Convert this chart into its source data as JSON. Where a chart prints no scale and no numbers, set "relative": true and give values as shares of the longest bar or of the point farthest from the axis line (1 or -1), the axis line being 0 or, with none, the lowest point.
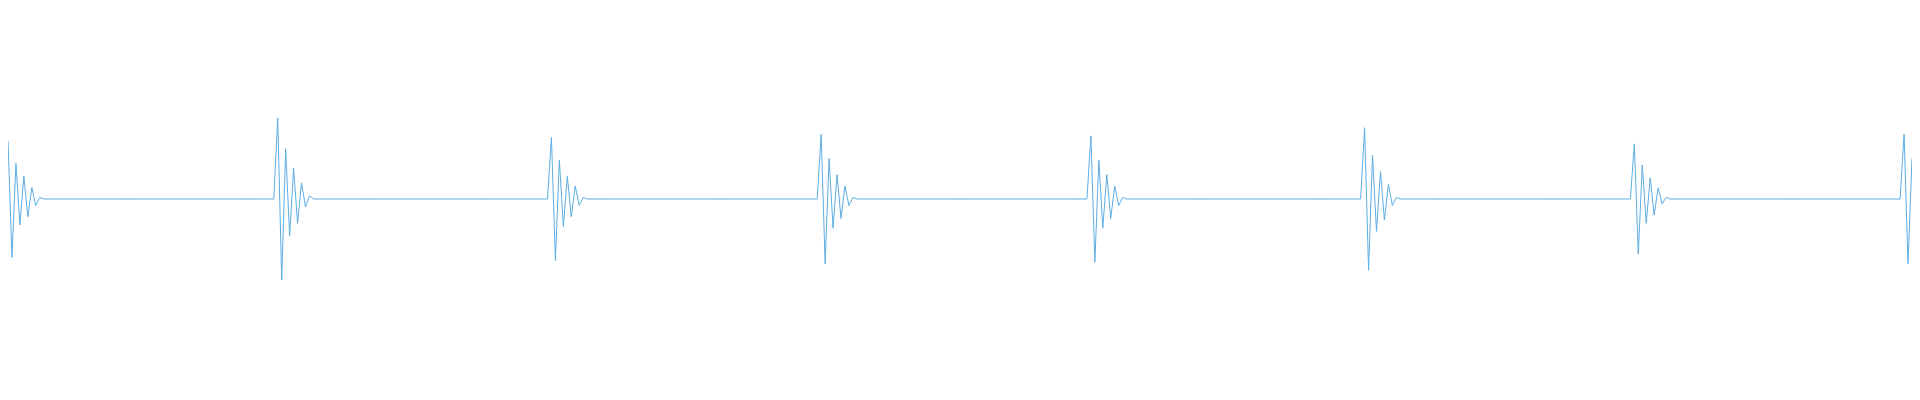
{
  "chart_data": {
    "type": "line",
    "relative": true,
    "color": "#5dade2",
    "categories": [
      null,
      null,
      null,
      null,
      null,
      null,
      null,
      null,
      null,
      null,
      null,
      null,
      null,
      null,
      null,
      null,
      null,
      null,
      null,
      null,
      null,
      null,
      null,
      null,
      null,
      null,
      null,
      null,
      null,
      null,
      null,
      null,
      null,
      null,
      null,
      null,
      null,
      null,
      null,
      null,
      null,
      null,
      null,
      null,
      null,
      null,
      null,
      null,
      null,
      null,
      null,
      null,
      null,
      null,
      null,
      null,
      null,
      null,
      null,
      null,
      null,
      null,
      null,
      null,
      null,
      null,
      null,
      null,
      null,
      null,
      null,
      null,
      null,
      null,
      null,
      null,
      null,
      null,
      null,
      null,
      null,
      null,
      null,
      null,
      null,
      null,
      null,
      null,
      null,
      null,
      null,
      null,
      null,
      null,
      null,
      null,
      null,
      null,
      null,
      null,
      null,
      null,
      null,
      null,
      null,
      null,
      null,
      null,
      null,
      null,
      null,
      null,
      null,
      null,
      null,
      null,
      null,
      null,
      null,
      null,
      null,
      null,
      null,
      null,
      null,
      null,
      null,
      null,
      null,
      null,
      null,
      null,
      null,
      null,
      null,
      null,
      null,
      null,
      null,
      null,
      null,
      null,
      null,
      null,
      null,
      null,
      null,
      null,
      null,
      null,
      null,
      null,
      null,
      null,
      null,
      null,
      null,
      null,
      null,
      null,
      null,
      null,
      null,
      null,
      null,
      null,
      null,
      null,
      null,
      null,
      null,
      null,
      null,
      null,
      null,
      null,
      null,
      null,
      null,
      null,
      null,
      null,
      null,
      null,
      null,
      null,
      null,
      null,
      null,
      null,
      null,
      null,
      null,
      null,
      null,
      null,
      null,
      null,
      null,
      null,
      null,
      null,
      null,
      null,
      null,
      null,
      null,
      null,
      null,
      null,
      null,
      null,
      null,
      null,
      null,
      null,
      null,
      null,
      null,
      null,
      null,
      null,
      null,
      null,
      null,
      null,
      null,
      null,
      null,
      null,
      null,
      null,
      null,
      null,
      null,
      null,
      null,
      null,
      null,
      null,
      null,
      null,
      null,
      null,
      null,
      null,
      null,
      null,
      null,
      null,
      null,
      null,
      null,
      null,
      null,
      null,
      null,
      null,
      null,
      null,
      null,
      null,
      null,
      null,
      null,
      null,
      null,
      null,
      null,
      null,
      null,
      null,
      null,
      null,
      null,
      null,
      null,
      null,
      null,
      null,
      null,
      null,
      null,
      null,
      null,
      null,
      null,
      null,
      null,
      null,
      null,
      null,
      null,
      null,
      null,
      null,
      null,
      null,
      null,
      null,
      null,
      null,
      null,
      null,
      null,
      null,
      null,
      null,
      null,
      null,
      null,
      null,
      null,
      null,
      null,
      null,
      null,
      null,
      null,
      null,
      null,
      null,
      null,
      null,
      null,
      null,
      null,
      null,
      null,
      null,
      null,
      null,
      null,
      null,
      null,
      null,
      null,
      null,
      null,
      null,
      null,
      null,
      null,
      null,
      null,
      null,
      null,
      null,
      null,
      null,
      null,
      null,
      null,
      null,
      null,
      null,
      null,
      null,
      null,
      null,
      null,
      null,
      null,
      null,
      null,
      null,
      null,
      null,
      null,
      null,
      null,
      null,
      null,
      null,
      null,
      null,
      null,
      null,
      null,
      null,
      null,
      null,
      null,
      null,
      null,
      null,
      null,
      null,
      null,
      null,
      null,
      null,
      null,
      null,
      null,
      null,
      null,
      null,
      null,
      null,
      null,
      null,
      null,
      null,
      null,
      null,
      null,
      null,
      null,
      null,
      null,
      null,
      null,
      null,
      null,
      null,
      null,
      null,
      null,
      null,
      null,
      null,
      null,
      null,
      null,
      null,
      null,
      null,
      null,
      null,
      null,
      null,
      null,
      null,
      null,
      null,
      null,
      null,
      null,
      null,
      null,
      null,
      null,
      null,
      null,
      null,
      null,
      null,
      null,
      null,
      null,
      null,
      null,
      null,
      null,
      null,
      null,
      null,
      null,
      null,
      null,
      null,
      null,
      null,
      null,
      null,
      null,
      null,
      null,
      null,
      null,
      null,
      null,
      null,
      null,
      null,
      null,
      null,
      null,
      null,
      null
    ],
    "values": [
      0.86,
      0.14,
      0.72,
      0.34,
      0.64,
      0.39,
      0.57,
      0.46,
      0.51,
      0.5,
      0.5,
      0.5,
      0.5,
      0.5,
      0.5,
      0.5,
      0.5,
      0.5,
      0.5,
      0.5,
      0.5,
      0.5,
      0.5,
      0.5,
      0.5,
      0.5,
      0.5,
      0.5,
      0.5,
      0.5,
      0.5,
      0.5,
      0.5,
      0.5,
      0.5,
      0.5,
      0.5,
      0.5,
      0.5,
      0.5,
      0.5,
      0.5,
      0.5,
      0.5,
      0.5,
      0.5,
      0.5,
      0.5,
      0.5,
      0.5,
      0.5,
      0.5,
      0.5,
      0.5,
      0.5,
      0.5,
      0.5,
      0.5,
      0.5,
      0.5,
      0.5,
      0.5,
      0.5,
      0.5,
      0.5,
      0.5,
      0.5,
      0.5,
      1,
      0,
      0.81,
      0.27,
      0.69,
      0.35,
      0.6,
      0.45,
      0.52,
      0.5,
      0.5,
      0.5,
      0.5,
      0.5,
      0.5,
      0.5,
      0.5,
      0.5,
      0.5,
      0.5,
      0.5,
      0.5,
      0.5,
      0.5,
      0.5,
      0.5,
      0.5,
      0.5,
      0.5,
      0.5,
      0.5,
      0.5,
      0.5,
      0.5,
      0.5,
      0.5,
      0.5,
      0.5,
      0.5,
      0.5,
      0.5,
      0.5,
      0.5,
      0.5,
      0.5,
      0.5,
      0.5,
      0.5,
      0.5,
      0.5,
      0.5,
      0.5,
      0.5,
      0.5,
      0.5,
      0.5,
      0.5,
      0.5,
      0.5,
      0.5,
      0.5,
      0.5,
      0.5,
      0.5,
      0.5,
      0.5,
      0.5,
      0.5,
      0.5,
      0.88,
      0.12,
      0.74,
      0.33,
      0.64,
      0.39,
      0.58,
      0.46,
      0.51,
      0.5,
      0.5,
      0.5,
      0.5,
      0.5,
      0.5,
      0.5,
      0.5,
      0.5,
      0.5,
      0.5,
      0.5,
      0.5,
      0.5,
      0.5,
      0.5,
      0.5,
      0.5,
      0.5,
      0.5,
      0.5,
      0.5,
      0.5,
      0.5,
      0.5,
      0.5,
      0.5,
      0.5,
      0.5,
      0.5,
      0.5,
      0.5,
      0.5,
      0.5,
      0.5,
      0.5,
      0.5,
      0.5,
      0.5,
      0.5,
      0.5,
      0.5,
      0.5,
      0.5,
      0.5,
      0.5,
      0.5,
      0.5,
      0.5,
      0.5,
      0.5,
      0.5,
      0.5,
      0.5,
      0.5,
      0.5,
      0.5,
      0.5,
      0.5,
      0.9,
      0.1,
      0.75,
      0.32,
      0.65,
      0.38,
      0.58,
      0.46,
      0.51,
      0.5,
      0.5,
      0.5,
      0.5,
      0.5,
      0.5,
      0.5,
      0.5,
      0.5,
      0.5,
      0.5,
      0.5,
      0.5,
      0.5,
      0.5,
      0.5,
      0.5,
      0.5,
      0.5,
      0.5,
      0.5,
      0.5,
      0.5,
      0.5,
      0.5,
      0.5,
      0.5,
      0.5,
      0.5,
      0.5,
      0.5,
      0.5,
      0.5,
      0.5,
      0.5,
      0.5,
      0.5,
      0.5,
      0.5,
      0.5,
      0.5,
      0.5,
      0.5,
      0.5,
      0.5,
      0.5,
      0.5,
      0.5,
      0.5,
      0.5,
      0.5,
      0.5,
      0.5,
      0.5,
      0.5,
      0.5,
      0.5,
      0.5,
      0.5,
      0.89,
      0.11,
      0.74,
      0.32,
      0.65,
      0.38,
      0.58,
      0.46,
      0.51,
      0.5,
      0.5,
      0.5,
      0.5,
      0.5,
      0.5,
      0.5,
      0.5,
      0.5,
      0.5,
      0.5,
      0.5,
      0.5,
      0.5,
      0.5,
      0.5,
      0.5,
      0.5,
      0.5,
      0.5,
      0.5,
      0.5,
      0.5,
      0.5,
      0.5,
      0.5,
      0.5,
      0.5,
      0.5,
      0.5,
      0.5,
      0.5,
      0.5,
      0.5,
      0.5,
      0.5,
      0.5,
      0.5,
      0.5,
      0.5,
      0.5,
      0.5,
      0.5,
      0.5,
      0.5,
      0.5,
      0.5,
      0.5,
      0.5,
      0.5,
      0.5,
      0.5,
      0.5,
      0.5,
      0.5,
      0.5,
      0.5,
      0.5,
      0.5,
      0.5,
      0.94,
      0.06,
      0.77,
      0.3,
      0.67,
      0.37,
      0.59,
      0.46,
      0.51,
      0.5,
      0.5,
      0.5,
      0.5,
      0.5,
      0.5,
      0.5,
      0.5,
      0.5,
      0.5,
      0.5,
      0.5,
      0.5,
      0.5,
      0.5,
      0.5,
      0.5,
      0.5,
      0.5,
      0.5,
      0.5,
      0.5,
      0.5,
      0.5,
      0.5,
      0.5,
      0.5,
      0.5,
      0.5,
      0.5,
      0.5,
      0.5,
      0.5,
      0.5,
      0.5,
      0.5,
      0.5,
      0.5,
      0.5,
      0.5,
      0.5,
      0.5,
      0.5,
      0.5,
      0.5,
      0.5,
      0.5,
      0.5,
      0.5,
      0.5,
      0.5,
      0.5,
      0.5,
      0.5,
      0.5,
      0.5,
      0.5,
      0.5,
      0.5,
      0.84,
      0.16,
      0.71,
      0.35,
      0.63,
      0.4,
      0.57,
      0.47,
      0.51,
      0.5,
      0.5,
      0.5,
      0.5,
      0.5,
      0.5,
      0.5,
      0.5,
      0.5,
      0.5,
      0.5,
      0.5,
      0.5,
      0.5,
      0.5,
      0.5,
      0.5,
      0.5,
      0.5,
      0.5,
      0.5,
      0.5,
      0.5,
      0.5,
      0.5,
      0.5,
      0.5,
      0.5,
      0.5,
      0.5,
      0.5,
      0.5,
      0.5,
      0.5,
      0.5,
      0.5,
      0.5,
      0.5,
      0.5,
      0.5,
      0.5,
      0.5,
      0.5,
      0.5,
      0.5,
      0.5,
      0.5,
      0.5,
      0.5,
      0.5,
      0.5,
      0.5,
      0.5,
      0.5,
      0.5,
      0.5,
      0.5,
      0.5,
      0.5,
      0.9,
      0.1,
      0.75
    ]
  }
}
